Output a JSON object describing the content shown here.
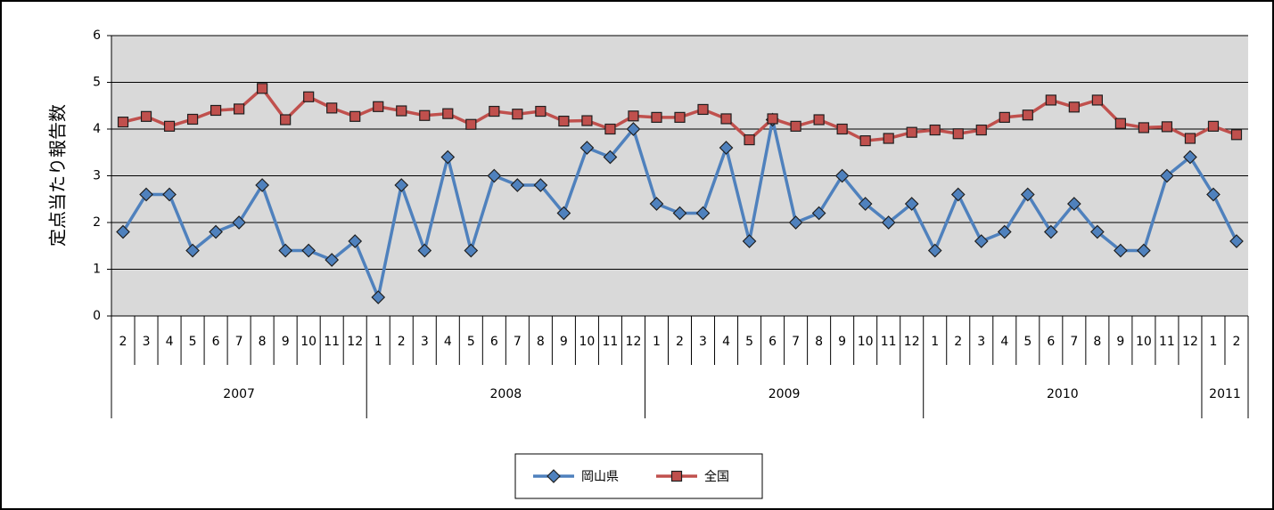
{
  "chart_data": {
    "type": "line",
    "y_axis_label": "定点当たり報告数",
    "category_groups": [
      {
        "name": "2007",
        "categories": [
          "2",
          "3",
          "4",
          "5",
          "6",
          "7",
          "8",
          "9",
          "10",
          "11",
          "12"
        ]
      },
      {
        "name": "2008",
        "categories": [
          "1",
          "2",
          "3",
          "4",
          "5",
          "6",
          "7",
          "8",
          "9",
          "10",
          "11",
          "12"
        ]
      },
      {
        "name": "2009",
        "categories": [
          "1",
          "2",
          "3",
          "4",
          "5",
          "6",
          "7",
          "8",
          "9",
          "10",
          "11",
          "12"
        ]
      },
      {
        "name": "2010",
        "categories": [
          "1",
          "2",
          "3",
          "4",
          "5",
          "6",
          "7",
          "8",
          "9",
          "10",
          "11",
          "12"
        ]
      },
      {
        "name": "2011",
        "categories": [
          "1",
          "2"
        ]
      }
    ],
    "series": [
      {
        "name": "岡山県",
        "color": "#4f81bd",
        "marker": "diamond",
        "values": [
          1.8,
          2.6,
          2.6,
          1.4,
          1.8,
          2.0,
          2.8,
          1.4,
          1.4,
          1.2,
          1.6,
          0.4,
          2.8,
          1.4,
          3.4,
          1.4,
          3.0,
          2.8,
          2.8,
          2.2,
          3.6,
          3.4,
          4.0,
          2.4,
          2.2,
          2.2,
          3.6,
          1.6,
          4.2,
          2.0,
          2.2,
          3.0,
          2.4,
          2.0,
          2.4,
          1.4,
          2.6,
          1.6,
          1.8,
          2.6,
          1.8,
          2.4,
          1.8,
          1.4,
          1.4,
          3.0,
          3.4,
          2.6,
          1.6
        ]
      },
      {
        "name": "全国",
        "color": "#c0504d",
        "marker": "square",
        "values": [
          4.15,
          4.27,
          4.06,
          4.21,
          4.4,
          4.43,
          4.87,
          4.2,
          4.69,
          4.45,
          4.27,
          4.48,
          4.39,
          4.29,
          4.33,
          4.1,
          4.38,
          4.32,
          4.38,
          4.17,
          4.18,
          4.0,
          4.28,
          4.25,
          4.25,
          4.42,
          4.22,
          3.77,
          4.22,
          4.06,
          4.2,
          4.0,
          3.75,
          3.8,
          3.93,
          3.98,
          3.9,
          3.98,
          4.25,
          4.3,
          4.62,
          4.47,
          4.62,
          4.12,
          4.03,
          4.05,
          3.8,
          4.06,
          3.88
        ]
      }
    ],
    "ylim": [
      0,
      6
    ],
    "yticks": [
      0,
      1,
      2,
      3,
      4,
      5,
      6
    ],
    "grid": true,
    "legend": "bottom"
  }
}
